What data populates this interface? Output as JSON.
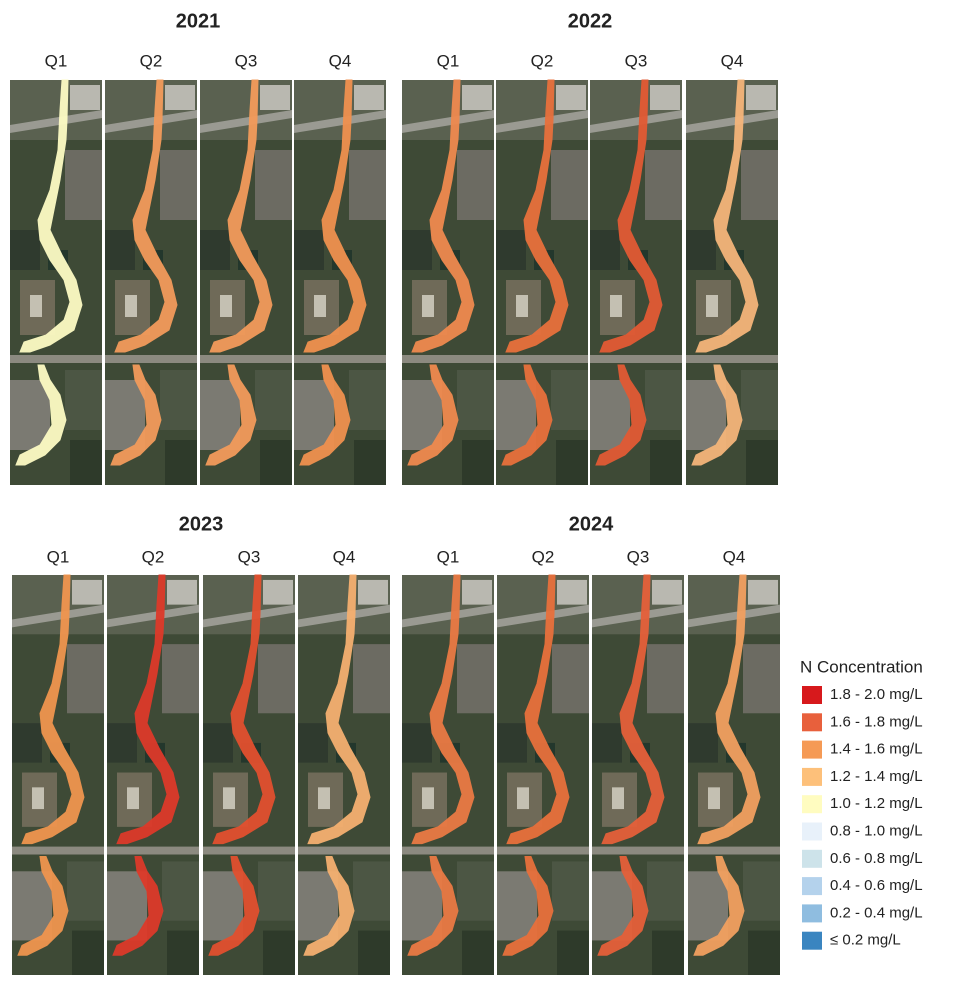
{
  "panels": [
    {
      "title": "2021",
      "quarters": [
        {
          "label": "Q1",
          "color": "#fdfbc4"
        },
        {
          "label": "Q2",
          "color": "#f39b5b"
        },
        {
          "label": "Q3",
          "color": "#f39b5b"
        },
        {
          "label": "Q4",
          "color": "#f0914f"
        }
      ]
    },
    {
      "title": "2022",
      "quarters": [
        {
          "label": "Q1",
          "color": "#ef8a4f"
        },
        {
          "label": "Q2",
          "color": "#e8703c"
        },
        {
          "label": "Q3",
          "color": "#e25a34"
        },
        {
          "label": "Q4",
          "color": "#f5b57a"
        }
      ]
    },
    {
      "title": "2023",
      "quarters": [
        {
          "label": "Q1",
          "color": "#f0954f"
        },
        {
          "label": "Q2",
          "color": "#dd3a2a"
        },
        {
          "label": "Q3",
          "color": "#e2502f"
        },
        {
          "label": "Q4",
          "color": "#f5b070"
        }
      ]
    },
    {
      "title": "2024",
      "quarters": [
        {
          "label": "Q1",
          "color": "#ea7a44"
        },
        {
          "label": "Q2",
          "color": "#e8703c"
        },
        {
          "label": "Q3",
          "color": "#e5603a"
        },
        {
          "label": "Q4",
          "color": "#f2a060"
        }
      ]
    }
  ],
  "legend": {
    "title": "N Concentration",
    "items": [
      {
        "label": "1.8 - 2.0 mg/L",
        "color": "#d7191c"
      },
      {
        "label": "1.6 - 1.8 mg/L",
        "color": "#e8603c"
      },
      {
        "label": "1.4 - 1.6 mg/L",
        "color": "#f59a55"
      },
      {
        "label": "1.2 - 1.4 mg/L",
        "color": "#fdc07a"
      },
      {
        "label": "1.0 - 1.2 mg/L",
        "color": "#fffcc0"
      },
      {
        "label": "0.8 - 1.0 mg/L",
        "color": "#e8f1fa"
      },
      {
        "label": "0.6 - 0.8 mg/L",
        "color": "#cde3ea"
      },
      {
        "label": "0.4 - 0.6 mg/L",
        "color": "#b4d2ec"
      },
      {
        "label": "0.2 - 0.4 mg/L",
        "color": "#8fbde0"
      },
      {
        "label": "≤ 0.2 mg/L",
        "color": "#3a85c0"
      }
    ]
  }
}
